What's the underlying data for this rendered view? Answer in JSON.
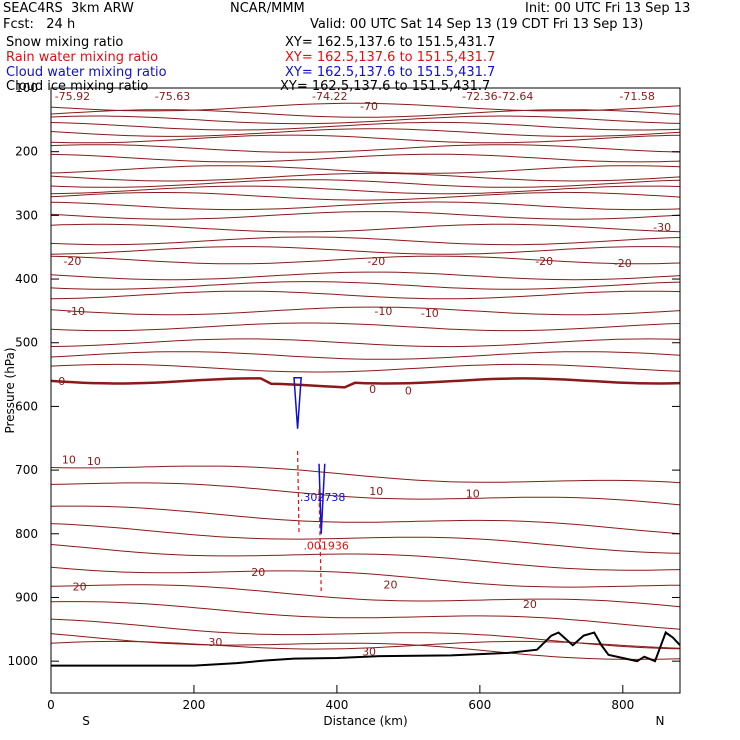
{
  "header": {
    "model": "SEAC4RS  3km ARW",
    "org": "NCAR/MMM",
    "init": "Init: 00 UTC Fri 13 Sep 13",
    "fcst": "Fcst:   24 h",
    "valid": "Valid: 00 UTC Sat 14 Sep 13 (19 CDT Fri 13 Sep 13)"
  },
  "legend": [
    {
      "label": "Snow mixing ratio",
      "xy": "XY= 162.5,137.6 to 151.5,431.7",
      "color": "#000000"
    },
    {
      "label": "Rain water mixing ratio",
      "xy": "XY= 162.5,137.6 to 151.5,431.7",
      "color": "#e01010"
    },
    {
      "label": "Cloud water mixing ratio",
      "xy": "XY= 162.5,137.6 to 151.5,431.7",
      "color": "#1010d0"
    },
    {
      "label": "Cloud ice mixing ratio",
      "xy": "XY= 162.5,137.6 to 151.5,431.7",
      "color": "#000000"
    }
  ],
  "chart_data": {
    "type": "line",
    "xlabel": "Distance (km)",
    "ylabel": "Pressure (hPa)",
    "xlim": [
      0,
      880
    ],
    "ylim": [
      1050,
      100
    ],
    "x_ticks": [
      "0",
      "200",
      "400",
      "600",
      "800"
    ],
    "y_ticks": [
      "100",
      "200",
      "300",
      "400",
      "500",
      "600",
      "700",
      "800",
      "900",
      "1000"
    ],
    "end_labels": {
      "left": "S",
      "right": "N"
    },
    "temperature_color": "#8b1a1a",
    "top_labels": [
      "-75.92",
      "-75.63",
      "-74.22",
      "-72.36",
      "-72.64",
      "-71.58"
    ],
    "contour_labels": [
      {
        "text": "-70",
        "x": 445,
        "p": 128
      },
      {
        "text": "-30",
        "x": 855,
        "p": 318
      },
      {
        "text": "-20",
        "x": 30,
        "p": 372
      },
      {
        "text": "-20",
        "x": 455,
        "p": 372
      },
      {
        "text": "-20",
        "x": 690,
        "p": 372
      },
      {
        "text": "-20",
        "x": 800,
        "p": 375
      },
      {
        "text": "-10",
        "x": 35,
        "p": 450
      },
      {
        "text": "-10",
        "x": 465,
        "p": 450
      },
      {
        "text": "-10",
        "x": 530,
        "p": 453
      },
      {
        "text": "0",
        "x": 15,
        "p": 560
      },
      {
        "text": "0",
        "x": 450,
        "p": 573
      },
      {
        "text": "0",
        "x": 500,
        "p": 575
      },
      {
        "text": "10",
        "x": 25,
        "p": 683
      },
      {
        "text": "10",
        "x": 60,
        "p": 686
      },
      {
        "text": "10",
        "x": 455,
        "p": 733
      },
      {
        "text": "10",
        "x": 590,
        "p": 737
      },
      {
        "text": "20",
        "x": 40,
        "p": 883
      },
      {
        "text": "20",
        "x": 290,
        "p": 860
      },
      {
        "text": "20",
        "x": 475,
        "p": 880
      },
      {
        "text": "20",
        "x": 670,
        "p": 910
      },
      {
        "text": "30",
        "x": 230,
        "p": 970
      },
      {
        "text": "30",
        "x": 445,
        "p": 985
      }
    ],
    "cloud_labels": [
      {
        "text": ".302738",
        "x": 380,
        "p": 742,
        "color": "#1010d0"
      },
      {
        "text": ".001936",
        "x": 385,
        "p": 818,
        "color": "#e01010"
      }
    ],
    "temperature_contours_c": [
      -70,
      -60,
      -50,
      -40,
      -30,
      -20,
      -10,
      0,
      10,
      20,
      30
    ],
    "terrain": {
      "x": [
        0,
        200,
        260,
        300,
        340,
        400,
        460,
        560,
        640,
        680,
        700,
        710,
        730,
        745,
        760,
        770,
        780,
        800,
        820,
        830,
        845,
        860,
        870,
        880
      ],
      "p": [
        1007,
        1007,
        1003,
        999,
        996,
        995,
        992,
        991,
        987,
        982,
        960,
        955,
        975,
        960,
        955,
        975,
        990,
        995,
        1000,
        993,
        1000,
        955,
        963,
        975
      ]
    }
  }
}
